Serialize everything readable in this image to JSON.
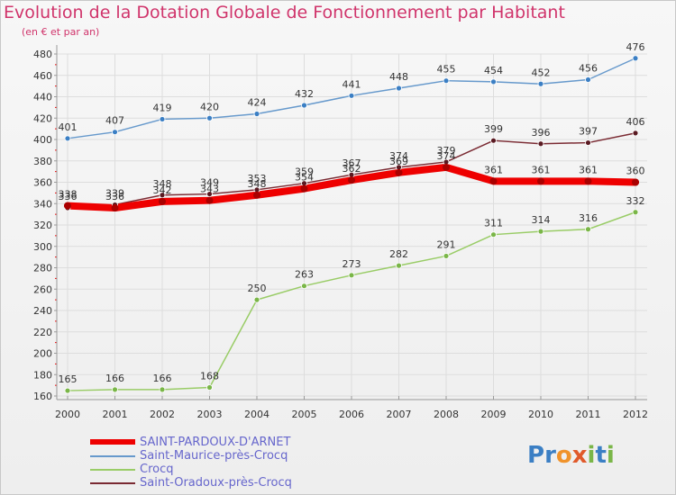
{
  "title": "Evolution de la Dotation Globale de Fonctionnement par Habitant",
  "subtitle": "(en € et par an)",
  "logo": {
    "text": "Proxiti",
    "letters": [
      "P",
      "r",
      "o",
      "x",
      "i",
      "t",
      "i"
    ],
    "colors": [
      "#3b7fc4",
      "#3b7fc4",
      "#f0932b",
      "#e05a2b",
      "#7ab648",
      "#3b7fc4",
      "#7ab648"
    ]
  },
  "chart_data": {
    "type": "line",
    "title": "Evolution de la Dotation Globale de Fonctionnement par Habitant",
    "ylabel": "(en € et par an)",
    "xlabel": "",
    "x": [
      2000,
      2001,
      2002,
      2003,
      2004,
      2005,
      2006,
      2007,
      2008,
      2009,
      2010,
      2011,
      2012
    ],
    "ylim": [
      160,
      480
    ],
    "yticks": [
      160,
      180,
      200,
      220,
      240,
      260,
      280,
      300,
      320,
      340,
      360,
      380,
      400,
      420,
      440,
      460,
      480
    ],
    "grid": true,
    "legend_position": "bottom-left",
    "series": [
      {
        "name": "SAINT-PARDOUX-D'ARNET",
        "color": "#ee0000",
        "values": [
          338,
          336,
          342,
          343,
          348,
          354,
          362,
          369,
          374,
          361,
          361,
          361,
          360
        ]
      },
      {
        "name": "Saint-Maurice-près-Crocq",
        "color": "#6699cc",
        "values": [
          401,
          407,
          419,
          420,
          424,
          432,
          441,
          448,
          455,
          454,
          452,
          456,
          476
        ]
      },
      {
        "name": "Crocq",
        "color": "#99cc66",
        "values": [
          165,
          166,
          166,
          168,
          250,
          263,
          273,
          282,
          291,
          311,
          314,
          316,
          332
        ]
      },
      {
        "name": "Saint-Oradoux-près-Crocq",
        "color": "#7a2a32",
        "values": [
          336,
          339,
          348,
          349,
          353,
          359,
          367,
          374,
          379,
          399,
          396,
          397,
          406
        ]
      }
    ]
  }
}
